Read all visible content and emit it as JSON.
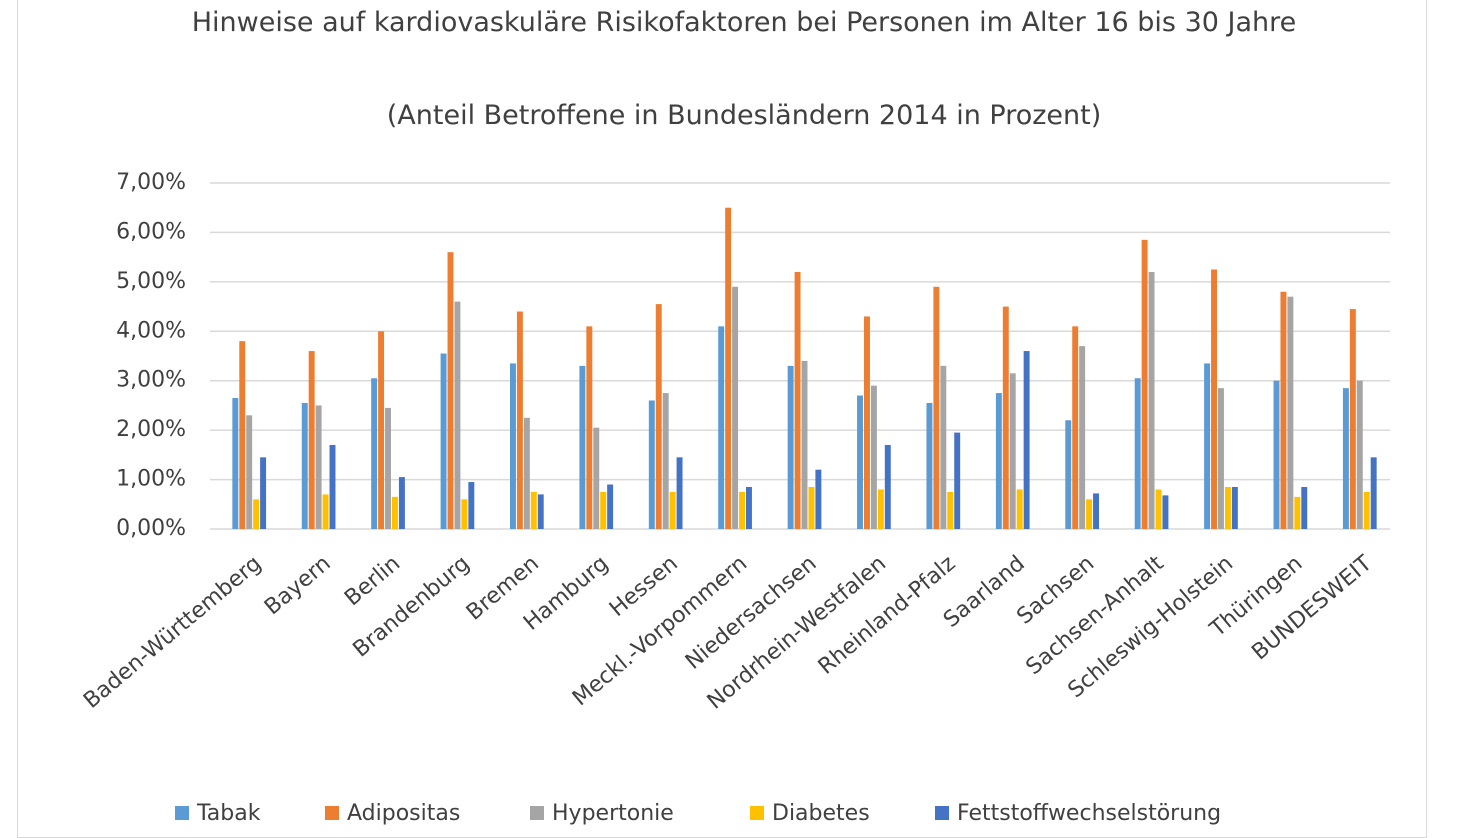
{
  "chart_data": {
    "type": "bar",
    "title": "Hinweise auf kardiovaskuläre Risikofaktoren bei Personen im Alter 16 bis 30 Jahre",
    "subtitle": "(Anteil Betroffene in Bundesländern 2014 in Prozent)",
    "categories": [
      "Baden-Württemberg",
      "Bayern",
      "Berlin",
      "Brandenburg",
      "Bremen",
      "Hamburg",
      "Hessen",
      "Meckl.-Vorpommern",
      "Niedersachsen",
      "Nordrhein-Westfalen",
      "Rheinland-Pfalz",
      "Saarland",
      "Sachsen",
      "Sachsen-Anhalt",
      "Schleswig-Holstein",
      "Thüringen",
      "BUNDESWEIT"
    ],
    "series": [
      {
        "name": "Tabak",
        "color": "#5b9bd5",
        "values": [
          2.65,
          2.55,
          3.05,
          3.55,
          3.35,
          3.3,
          2.6,
          4.1,
          3.3,
          2.7,
          2.55,
          2.75,
          2.2,
          3.05,
          3.35,
          3.0,
          2.85
        ]
      },
      {
        "name": "Adipositas",
        "color": "#ed7d31",
        "values": [
          3.8,
          3.6,
          4.0,
          5.6,
          4.4,
          4.1,
          4.55,
          6.5,
          5.2,
          4.3,
          4.9,
          4.5,
          4.1,
          5.85,
          5.25,
          4.8,
          4.45
        ]
      },
      {
        "name": "Hypertonie",
        "color": "#a5a5a5",
        "values": [
          2.3,
          2.5,
          2.45,
          4.6,
          2.25,
          2.05,
          2.75,
          4.9,
          3.4,
          2.9,
          3.3,
          3.15,
          3.7,
          5.2,
          2.85,
          4.7,
          3.0
        ]
      },
      {
        "name": "Diabetes",
        "color": "#ffc000",
        "values": [
          0.6,
          0.7,
          0.65,
          0.6,
          0.75,
          0.75,
          0.75,
          0.75,
          0.85,
          0.8,
          0.75,
          0.8,
          0.6,
          0.8,
          0.85,
          0.65,
          0.75
        ]
      },
      {
        "name": "Fettstoffwechselstörung",
        "color": "#4472c4",
        "values": [
          1.45,
          1.7,
          1.05,
          0.95,
          0.7,
          0.9,
          1.45,
          0.85,
          1.2,
          1.7,
          1.95,
          3.6,
          0.72,
          0.68,
          0.85,
          0.85,
          1.45
        ]
      }
    ],
    "ylim": [
      0,
      7
    ],
    "yticks": [
      {
        "value": 0,
        "label": "0,00%"
      },
      {
        "value": 1,
        "label": "1,00%"
      },
      {
        "value": 2,
        "label": "2,00%"
      },
      {
        "value": 3,
        "label": "3,00%"
      },
      {
        "value": 4,
        "label": "4,00%"
      },
      {
        "value": 5,
        "label": "5,00%"
      },
      {
        "value": 6,
        "label": "6,00%"
      },
      {
        "value": 7,
        "label": "7,00%"
      }
    ],
    "grid": true
  }
}
